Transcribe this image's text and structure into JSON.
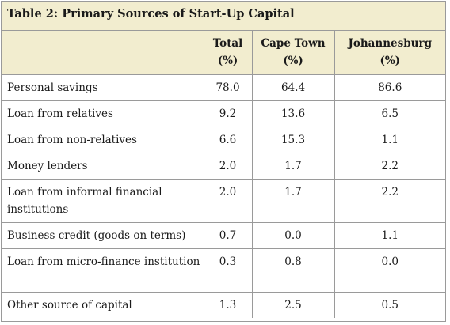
{
  "table": {
    "title": "Table 2: Primary Sources of Start-Up Capital",
    "headers": [
      {
        "line1": "",
        "line2": ""
      },
      {
        "line1": "Total",
        "line2": "(%)"
      },
      {
        "line1": "Cape Town",
        "line2": "(%)"
      },
      {
        "line1": "Johannesburg",
        "line2": "(%)"
      }
    ],
    "rows": [
      {
        "label": "Personal savings",
        "total": "78.0",
        "cape_town": "64.4",
        "johannesburg": "86.6"
      },
      {
        "label": "Loan from relatives",
        "total": "9.2",
        "cape_town": "13.6",
        "johannesburg": "6.5"
      },
      {
        "label": "Loan from non-relatives",
        "total": "6.6",
        "cape_town": "15.3",
        "johannesburg": "1.1"
      },
      {
        "label": "Money lenders",
        "total": "2.0",
        "cape_town": "1.7",
        "johannesburg": "2.2"
      },
      {
        "label": "Loan from informal financial institutions",
        "total": "2.0",
        "cape_town": "1.7",
        "johannesburg": "2.2"
      },
      {
        "label": "Business credit (goods on terms)",
        "total": "0.7",
        "cape_town": "0.0",
        "johannesburg": "1.1"
      },
      {
        "label": "Loan from micro-finance institution",
        "total": "0.3",
        "cape_town": "0.8",
        "johannesburg": "0.0"
      },
      {
        "label": "Other source of capital",
        "total": "1.3",
        "cape_town": "2.5",
        "johannesburg": "0.5"
      }
    ]
  },
  "colors": {
    "header_bg": "#f2edcf",
    "border": "#9a9a9a"
  }
}
